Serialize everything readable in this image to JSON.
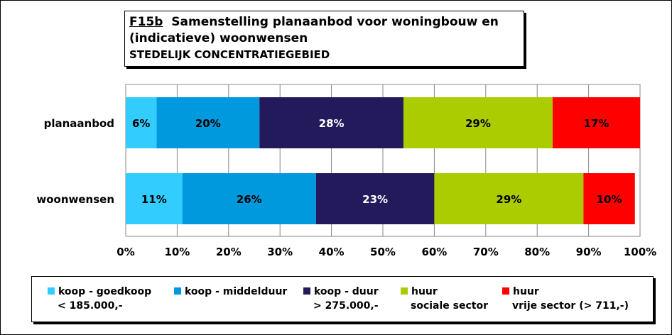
{
  "title": {
    "code": "F15b",
    "text_part1": "Samenstelling planaanbod voor woningbouw en",
    "text_part2": "(indicatieve) woonwensen",
    "subtitle": "STEDELIJK CONCENTRATIEGEBIED"
  },
  "chart_data": {
    "type": "bar",
    "orientation": "horizontal",
    "stacked": "percent",
    "categories": [
      "planaanbod",
      "woonwensen"
    ],
    "series": [
      {
        "name": "koop - goedkoop < 185.000,-",
        "color": "#33ccff",
        "values": [
          6,
          11
        ],
        "labels": [
          "6%",
          "11%"
        ]
      },
      {
        "name": "koop - middelduur",
        "color": "#0099dd",
        "values": [
          20,
          26
        ],
        "labels": [
          "20%",
          "26%"
        ]
      },
      {
        "name": "koop - duur > 275.000,-",
        "color": "#221a5a",
        "values": [
          28,
          23
        ],
        "labels": [
          "28%",
          "23%"
        ]
      },
      {
        "name": "huur sociale sector",
        "color": "#aacc00",
        "values": [
          29,
          29
        ],
        "labels": [
          "29%",
          "29%"
        ]
      },
      {
        "name": "huur vrije sector (> 711,-)",
        "color": "#ff0000",
        "values": [
          17,
          10
        ],
        "labels": [
          "17%",
          "10%"
        ]
      }
    ],
    "x_ticks": [
      "0%",
      "10%",
      "20%",
      "30%",
      "40%",
      "50%",
      "60%",
      "70%",
      "80%",
      "90%",
      "100%"
    ],
    "xlim": [
      0,
      100
    ],
    "grid": true,
    "legend_position": "bottom"
  },
  "legend": [
    {
      "line1": "koop - goedkoop",
      "line2": "< 185.000,-",
      "color": "#33ccff"
    },
    {
      "line1": "koop - middelduur",
      "line2": "",
      "color": "#0099dd"
    },
    {
      "line1": "koop - duur",
      "line2": "> 275.000,-",
      "color": "#221a5a"
    },
    {
      "line1": "huur",
      "line2": "sociale sector",
      "color": "#aacc00"
    },
    {
      "line1": "huur",
      "line2": "vrije sector (> 711,-)",
      "color": "#ff0000"
    }
  ]
}
